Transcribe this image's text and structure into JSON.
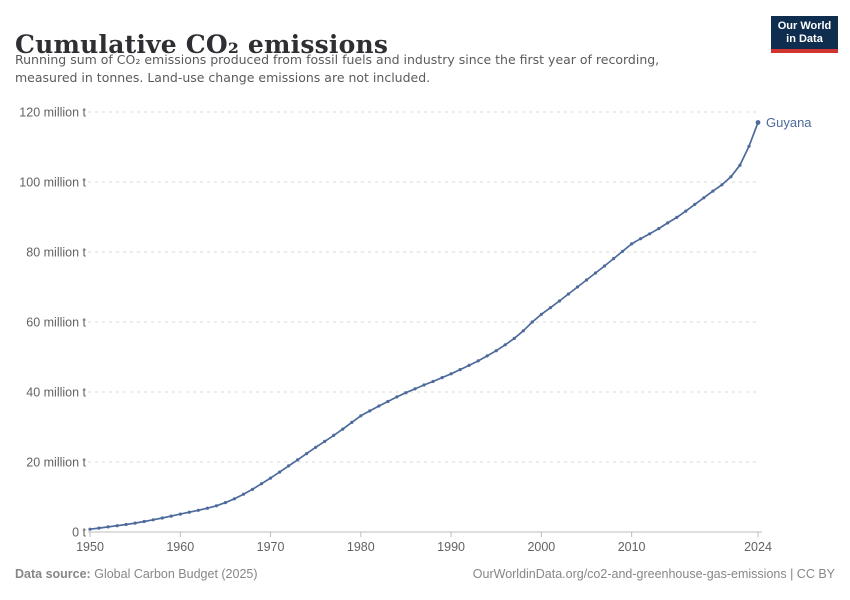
{
  "header": {
    "title": "Cumulative CO₂ emissions",
    "subtitle_line1": "Running sum of CO₂ emissions produced from fossil fuels and industry since the first year of recording,",
    "subtitle_line2": "measured in tonnes. Land-use change emissions are not included.",
    "logo": {
      "line1": "Our World",
      "line2": "in Data",
      "bg_color": "#0f2e4f",
      "accent_color": "#cf342e"
    }
  },
  "chart_data": {
    "type": "line",
    "title": "Cumulative CO₂ emissions",
    "entity": "Guyana",
    "unit": "tonnes",
    "values_unit": "million tonnes",
    "line_color": "#4c6a9c",
    "grid": "horizontal-dashed",
    "xlim": [
      1950,
      2024
    ],
    "ylim": [
      0,
      120
    ],
    "x_ticks": [
      1950,
      1960,
      1970,
      1980,
      1990,
      2000,
      2010,
      2024
    ],
    "y_ticks": [
      {
        "value": 0,
        "label": "0 t"
      },
      {
        "value": 20,
        "label": "20 million t"
      },
      {
        "value": 40,
        "label": "40 million t"
      },
      {
        "value": 60,
        "label": "60 million t"
      },
      {
        "value": 80,
        "label": "80 million t"
      },
      {
        "value": 100,
        "label": "100 million t"
      },
      {
        "value": 120,
        "label": "120 million t"
      }
    ],
    "x": [
      1950,
      1951,
      1952,
      1953,
      1954,
      1955,
      1956,
      1957,
      1958,
      1959,
      1960,
      1961,
      1962,
      1963,
      1964,
      1965,
      1966,
      1967,
      1968,
      1969,
      1970,
      1971,
      1972,
      1973,
      1974,
      1975,
      1976,
      1977,
      1978,
      1979,
      1980,
      1981,
      1982,
      1983,
      1984,
      1985,
      1986,
      1987,
      1988,
      1989,
      1990,
      1991,
      1992,
      1993,
      1994,
      1995,
      1996,
      1997,
      1998,
      1999,
      2000,
      2001,
      2002,
      2003,
      2004,
      2005,
      2006,
      2007,
      2008,
      2009,
      2010,
      2011,
      2012,
      2013,
      2014,
      2015,
      2016,
      2017,
      2018,
      2019,
      2020,
      2021,
      2022,
      2023,
      2024
    ],
    "values": [
      0.8,
      1.1,
      1.45,
      1.8,
      2.15,
      2.55,
      3.0,
      3.5,
      4.0,
      4.55,
      5.1,
      5.65,
      6.2,
      6.8,
      7.5,
      8.4,
      9.5,
      10.8,
      12.2,
      13.8,
      15.4,
      17.1,
      18.9,
      20.6,
      22.4,
      24.2,
      25.9,
      27.6,
      29.4,
      31.3,
      33.2,
      34.6,
      36.0,
      37.3,
      38.6,
      39.8,
      40.9,
      42.0,
      43.0,
      44.1,
      45.2,
      46.4,
      47.6,
      48.9,
      50.3,
      51.8,
      53.5,
      55.3,
      57.5,
      60.0,
      62.2,
      64.1,
      66.0,
      68.0,
      70.0,
      72.0,
      74.0,
      76.0,
      78.1,
      80.2,
      82.3,
      83.8,
      85.2,
      86.7,
      88.3,
      89.9,
      91.7,
      93.6,
      95.5,
      97.4,
      99.2,
      101.5,
      104.8,
      110.2,
      117.0
    ]
  },
  "footer": {
    "source_label": "Data source:",
    "source_text": "Global Carbon Budget (2025)",
    "credit": "OurWorldinData.org/co2-and-greenhouse-gas-emissions | CC BY"
  }
}
